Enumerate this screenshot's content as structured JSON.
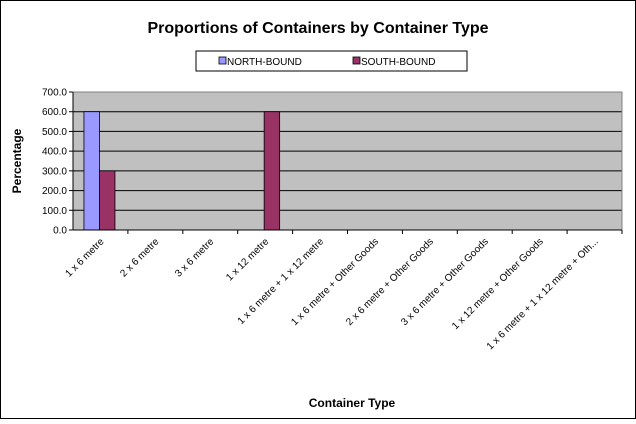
{
  "chart_data": {
    "type": "bar",
    "title": "Proportions of Containers by Container Type",
    "xlabel": "Container Type",
    "ylabel": "Percentage",
    "ylim": [
      0,
      700
    ],
    "yticks": [
      "0.0",
      "100.0",
      "200.0",
      "300.0",
      "400.0",
      "500.0",
      "600.0",
      "700.0"
    ],
    "grid": true,
    "legend_position": "top",
    "plot_background": "#c0c0c0",
    "categories": [
      "1 x 6 metre",
      "2 x 6 metre",
      "3 x 6 metre",
      "1 x 12 metre",
      "1 x 6 metre + 1 x 12 metre",
      "1 x 6 metre + Other Goods",
      "2 x 6 metre + Other Goods",
      "3 x 6 metre + Other Goods",
      "1 x 12 metre + Other Goods",
      "1 x 6 metre + 1 x 12 metre + Oth..."
    ],
    "series": [
      {
        "name": "NORTH-BOUND",
        "color": "#9999ff",
        "values": [
          600,
          0,
          0,
          0,
          0,
          0,
          0,
          0,
          0,
          0
        ]
      },
      {
        "name": "SOUTH-BOUND",
        "color": "#993366",
        "values": [
          300,
          0,
          0,
          600,
          0,
          0,
          0,
          0,
          0,
          0
        ]
      }
    ]
  }
}
